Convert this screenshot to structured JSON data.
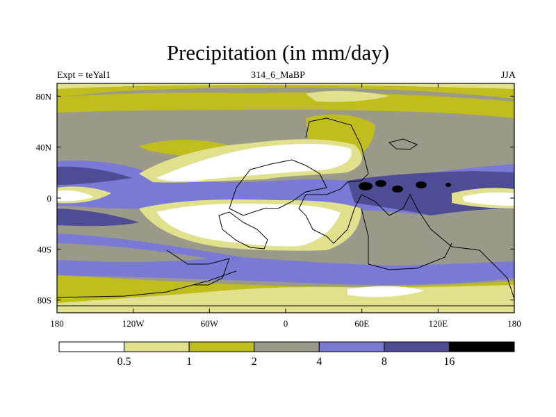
{
  "chart_data": {
    "type": "heatmap",
    "title": "Precipitation (in mm/day)",
    "subtitle_left": "Expt = teYal1",
    "subtitle_center": "314_6_MaBP",
    "subtitle_right": "JJA",
    "xlim": [
      -180,
      180
    ],
    "ylim": [
      -90,
      90
    ],
    "x_ticks": [
      {
        "value": -180,
        "label": "180"
      },
      {
        "value": -120,
        "label": "120W"
      },
      {
        "value": -60,
        "label": "60W"
      },
      {
        "value": 0,
        "label": "0"
      },
      {
        "value": 60,
        "label": "60E"
      },
      {
        "value": 120,
        "label": "120E"
      },
      {
        "value": 180,
        "label": "180"
      }
    ],
    "y_ticks": [
      {
        "value": 80,
        "label": "80N"
      },
      {
        "value": 40,
        "label": "40N"
      },
      {
        "value": 0,
        "label": "0"
      },
      {
        "value": -40,
        "label": "40S"
      },
      {
        "value": -80,
        "label": "80S"
      }
    ],
    "colorbar": {
      "levels": [
        0.5,
        1,
        2,
        4,
        8,
        16
      ],
      "labels": [
        "0.5",
        "1",
        "2",
        "4",
        "8",
        "16"
      ],
      "colors": [
        "#ffffff",
        "#e1e08c",
        "#c0bd1e",
        "#9b9989",
        "#7a7ad6",
        "#4e4c95",
        "#000000"
      ]
    }
  }
}
